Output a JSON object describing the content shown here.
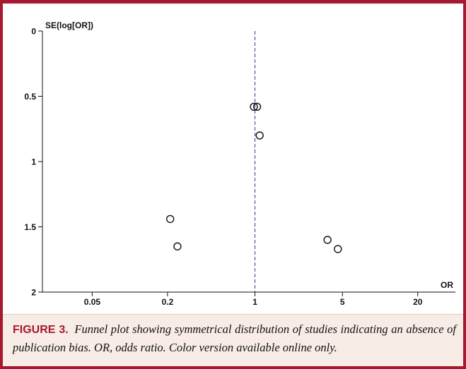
{
  "caption": {
    "label": "FIGURE 3.",
    "text": "Funnel plot showing symmetrical distribution of studies indicating an absence of publication bias. OR, odds ratio. Color version available online only."
  },
  "colors": {
    "frame": "#a6192e",
    "caption_bg": "#f7ece6",
    "reference_line": "#2b3a8c",
    "points": "#111111"
  },
  "chart_data": {
    "type": "scatter",
    "title": "",
    "xlabel": "OR",
    "ylabel": "SE(log[OR])",
    "x_scale": "log",
    "y_inverted": true,
    "xlim": [
      0.02,
      40
    ],
    "ylim": [
      0,
      2
    ],
    "xticks": [
      {
        "value": 0.05,
        "label": "0.05"
      },
      {
        "value": 0.2,
        "label": "0.2"
      },
      {
        "value": 1,
        "label": "1"
      },
      {
        "value": 5,
        "label": "5"
      },
      {
        "value": 20,
        "label": "20"
      }
    ],
    "yticks": [
      {
        "value": 0,
        "label": "0"
      },
      {
        "value": 0.5,
        "label": "0.5"
      },
      {
        "value": 1,
        "label": "1"
      },
      {
        "value": 1.5,
        "label": "1.5"
      },
      {
        "value": 2,
        "label": "2"
      }
    ],
    "reference_line": {
      "x": 1,
      "style": "dashed"
    },
    "points": [
      {
        "x": 0.98,
        "y": 0.58
      },
      {
        "x": 1.04,
        "y": 0.58
      },
      {
        "x": 1.09,
        "y": 0.8
      },
      {
        "x": 0.21,
        "y": 1.44
      },
      {
        "x": 0.24,
        "y": 1.65
      },
      {
        "x": 3.8,
        "y": 1.6
      },
      {
        "x": 4.6,
        "y": 1.67
      }
    ],
    "grid": false,
    "legend": "none"
  }
}
